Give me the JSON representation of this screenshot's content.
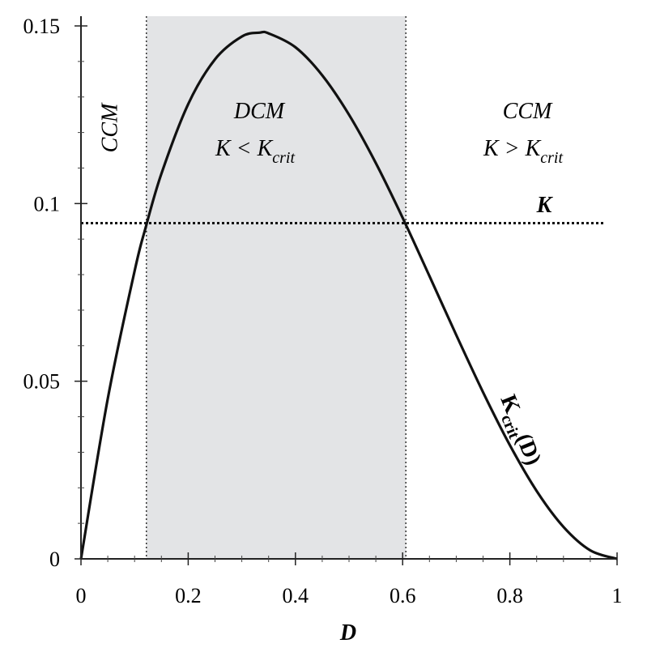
{
  "chart_data": {
    "type": "line",
    "xlabel": "D",
    "ylabel": "",
    "xlim": [
      0,
      1
    ],
    "ylim": [
      0,
      0.15
    ],
    "x_ticks": [
      "0",
      "0.2",
      "0.4",
      "0.6",
      "0.8",
      "1"
    ],
    "y_ticks": [
      "0",
      "0.05",
      "0.1",
      "0.15"
    ],
    "x_tick_values": [
      0,
      0.2,
      0.4,
      0.6,
      0.8,
      1
    ],
    "y_tick_values": [
      0,
      0.05,
      0.1,
      0.15
    ],
    "grid": false,
    "series": [
      {
        "name": "Kcrit(D)",
        "x": [
          0,
          0.05,
          0.1,
          0.12,
          0.15,
          0.2,
          0.25,
          0.3,
          0.333,
          0.35,
          0.4,
          0.45,
          0.5,
          0.55,
          0.6,
          0.65,
          0.7,
          0.75,
          0.8,
          0.85,
          0.9,
          0.95,
          1.0
        ],
        "y": [
          0,
          0.0451,
          0.081,
          0.0929,
          0.1084,
          0.128,
          0.1406,
          0.147,
          0.1481,
          0.1479,
          0.144,
          0.1361,
          0.125,
          0.1114,
          0.096,
          0.0796,
          0.063,
          0.0469,
          0.032,
          0.0191,
          0.009,
          0.0024,
          0
        ]
      }
    ],
    "threshold": {
      "label": "K",
      "value": 0.0945
    },
    "shaded_region": {
      "x_start": 0.122,
      "x_end": 0.606,
      "color": "#e3e4e6"
    },
    "annotations": {
      "left_region": "CCM",
      "middle_region_1": "DCM",
      "middle_region_2_main": "K < K",
      "middle_region_2_sub": "crit",
      "right_region_1": "CCM",
      "right_region_2_main": "K > K",
      "right_region_2_sub": "crit",
      "curve_label_main": "K",
      "curve_label_sub": "crit",
      "curve_label_tail": "(D)"
    },
    "colors": {
      "curve": "#111111",
      "axis": "#222222",
      "shade": "#e3e4e6"
    }
  }
}
